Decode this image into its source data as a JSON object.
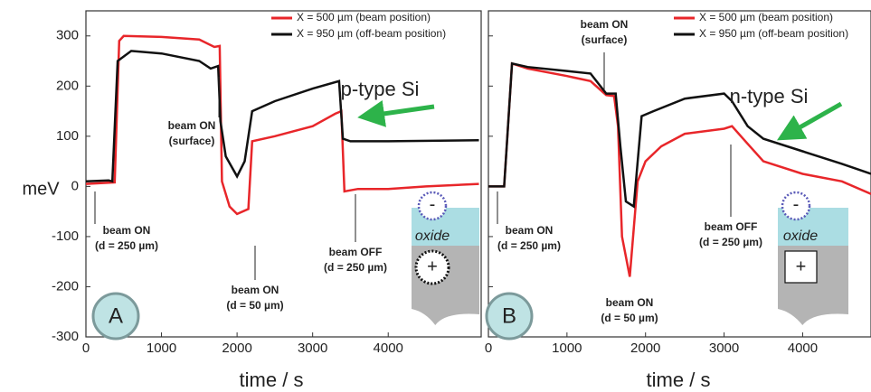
{
  "chart_data": [
    {
      "type": "line",
      "panel_label": "A",
      "sample_label": "p-type Si",
      "y_label": "meV",
      "x_label": "time / s",
      "xlim": [
        0,
        5230
      ],
      "xticks": [
        0,
        1000,
        2000,
        3000,
        4000
      ],
      "ylim": [
        -300,
        350
      ],
      "yticks": [
        -300,
        -200,
        -100,
        0,
        100,
        200,
        300
      ],
      "ytick_labels": true,
      "series": [
        {
          "name": "X = 500 µm (beam position)",
          "color": "#e8262a",
          "x": [
            0,
            380,
            440,
            500,
            1000,
            1500,
            1700,
            1770,
            1800,
            1900,
            2000,
            2150,
            2200,
            2500,
            3000,
            3300,
            3380,
            3420,
            3600,
            4000,
            4500,
            5200
          ],
          "values": [
            5,
            8,
            290,
            300,
            298,
            293,
            278,
            280,
            10,
            -40,
            -55,
            -45,
            90,
            100,
            120,
            145,
            150,
            -10,
            -5,
            -5,
            0,
            5
          ]
        },
        {
          "name": "X = 950 µm (off-beam position)",
          "color": "#111111",
          "x": [
            0,
            300,
            350,
            420,
            600,
            1000,
            1500,
            1650,
            1750,
            1780,
            1850,
            2000,
            2100,
            2200,
            2500,
            3000,
            3350,
            3400,
            3500,
            4000,
            5200
          ],
          "values": [
            10,
            12,
            10,
            250,
            270,
            265,
            250,
            235,
            240,
            130,
            60,
            20,
            50,
            150,
            170,
            195,
            210,
            95,
            90,
            90,
            92
          ]
        }
      ],
      "annotations": [
        [
          "beam ON",
          "(d = 250 µm)"
        ],
        [
          "beam ON",
          "(surface)"
        ],
        [
          "beam ON",
          "(d = 50 µm)"
        ],
        [
          "beam OFF",
          "(d = 250 µm)"
        ]
      ],
      "inset": {
        "top_sign": "-",
        "bottom_sign": "+",
        "label": "oxide"
      }
    },
    {
      "type": "line",
      "panel_label": "B",
      "sample_label": "n-type Si",
      "x_label": "time / s",
      "xlim": [
        0,
        4870
      ],
      "xticks": [
        0,
        1000,
        2000,
        3000,
        4000
      ],
      "ylim": [
        -300,
        350
      ],
      "yticks": [
        -300,
        -200,
        -100,
        0,
        100,
        200,
        300
      ],
      "ytick_labels": false,
      "series": [
        {
          "name": "X = 500 µm (beam position)",
          "color": "#e8262a",
          "x": [
            0,
            200,
            300,
            500,
            1000,
            1300,
            1500,
            1600,
            1650,
            1700,
            1800,
            1900,
            2000,
            2200,
            2500,
            3000,
            3100,
            3300,
            3500,
            4000,
            4500,
            4870
          ],
          "values": [
            0,
            0,
            245,
            235,
            220,
            210,
            182,
            180,
            120,
            -100,
            -180,
            10,
            50,
            80,
            105,
            115,
            120,
            85,
            50,
            25,
            10,
            -15
          ]
        },
        {
          "name": "X = 950 µm (off-beam position)",
          "color": "#111111",
          "x": [
            0,
            200,
            300,
            500,
            1000,
            1300,
            1500,
            1620,
            1680,
            1750,
            1850,
            1950,
            2100,
            2500,
            3000,
            3100,
            3300,
            3500,
            4000,
            4500,
            4870
          ],
          "values": [
            0,
            0,
            245,
            238,
            230,
            225,
            185,
            185,
            80,
            -30,
            -40,
            140,
            150,
            175,
            185,
            170,
            120,
            95,
            70,
            45,
            25
          ]
        }
      ],
      "annotations": [
        [
          "beam ON",
          "(d = 250 µm)"
        ],
        [
          "beam ON",
          "(surface)"
        ],
        [
          "beam ON",
          "(d = 50 µm)"
        ],
        [
          "beam OFF",
          "(d = 250 µm)"
        ]
      ],
      "inset": {
        "top_sign": "-",
        "bottom_sign": "+",
        "label": "oxide"
      }
    }
  ]
}
